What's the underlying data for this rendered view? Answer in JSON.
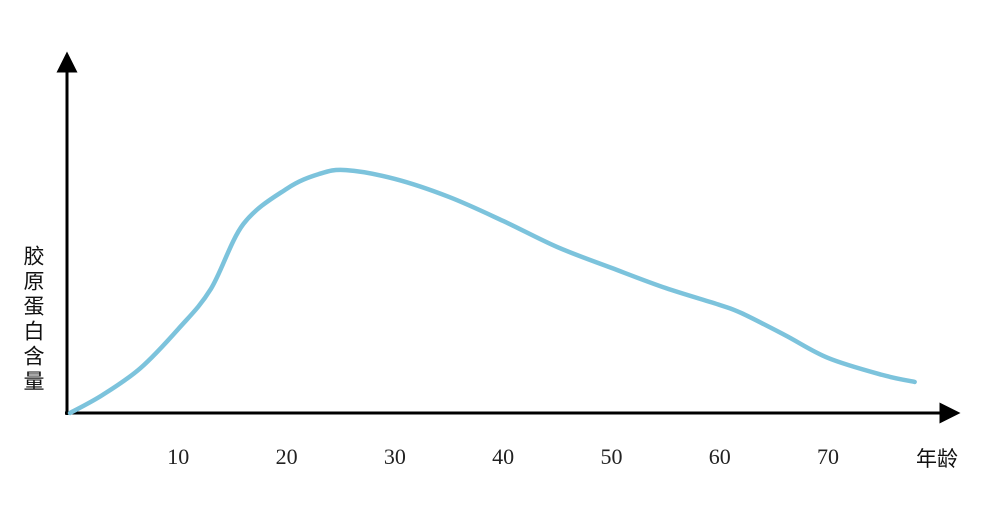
{
  "chart_data": {
    "type": "line",
    "x_label": "年龄",
    "y_label": "胶原蛋白含量",
    "x": [
      0,
      3,
      6.5,
      10,
      13,
      16,
      20,
      23,
      25.5,
      30,
      35,
      40,
      45,
      50,
      55,
      60,
      62,
      66,
      70,
      75,
      78
    ],
    "series": [
      {
        "color": "#7cc3dc",
        "values": [
          0,
          5.1,
          12.7,
          23.8,
          35.1,
          53.5,
          63.5,
          67.7,
          68.8,
          66.3,
          61.2,
          54.4,
          47.0,
          41.1,
          35.4,
          30.6,
          28.3,
          22.1,
          15.6,
          10.8,
          8.8
        ]
      }
    ],
    "xlim": [
      0,
      82
    ],
    "xticks": [
      10,
      20,
      30,
      40,
      50,
      60,
      70
    ],
    "ylim": [
      0,
      100
    ]
  }
}
